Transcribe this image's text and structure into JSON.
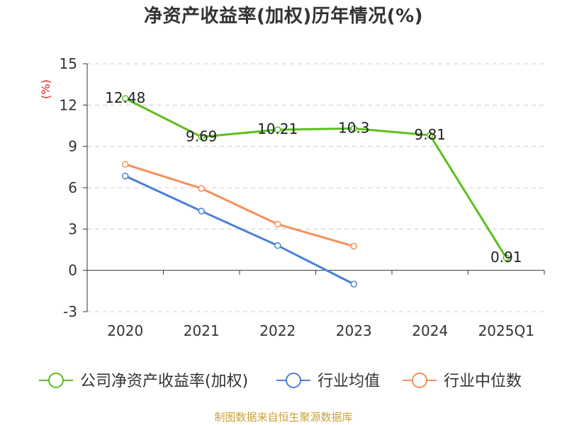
{
  "chart_data": {
    "type": "line",
    "title": "净资产收益率(加权)历年情况(%)",
    "ylabel": "(%)",
    "xlabel": "",
    "categories": [
      "2020",
      "2021",
      "2022",
      "2023",
      "2024",
      "2025Q1"
    ],
    "ylim": [
      -3,
      15
    ],
    "yticks": [
      15,
      12,
      9,
      6,
      3,
      0,
      -3
    ],
    "grid": true,
    "legend_position": "bottom",
    "series": [
      {
        "name": "公司净资产收益率(加权)",
        "color": "#5cbf1e",
        "values": [
          12.48,
          9.69,
          10.21,
          10.3,
          9.81,
          0.91
        ],
        "labels": [
          "12.48",
          "9.69",
          "10.21",
          "10.3",
          "9.81",
          "0.91"
        ]
      },
      {
        "name": "行业均值",
        "color": "#4a7fd8",
        "values": [
          6.85,
          4.3,
          1.8,
          -1.0,
          null,
          null
        ]
      },
      {
        "name": "行业中位数",
        "color": "#f5905a",
        "values": [
          7.7,
          5.95,
          3.35,
          1.75,
          null,
          null
        ]
      }
    ]
  },
  "source_text": "制图数据来自恒生聚源数据库",
  "colors": {
    "axis": "#333333",
    "grid": "#cccccc",
    "ylabel": "#e02020"
  }
}
